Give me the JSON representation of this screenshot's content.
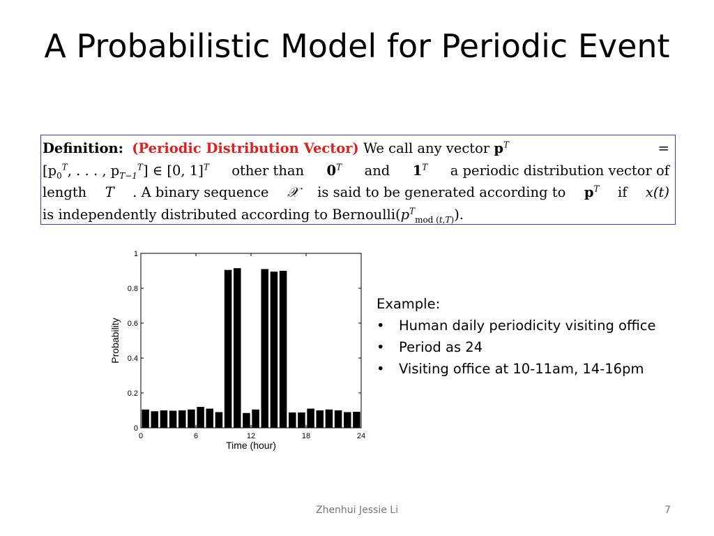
{
  "slide": {
    "title": "A Probabilistic Model for Periodic Event",
    "author": "Zhenhui Jessie Li",
    "page_number": "7"
  },
  "definition": {
    "label": "Definition:",
    "name": "(Periodic Distribution Vector)",
    "line1_text": "We call any vector",
    "line1_tail": "=",
    "line2_a": "[p",
    "line2_b": ", . . . , p",
    "line2_c": "] ∈ [0, 1]",
    "line2_d": "other than",
    "line2_e": "and",
    "line2_f": "a periodic distribution vector of",
    "line3_a": "length",
    "line3_b": ". A binary sequence",
    "line3_c": "is said to be generated according to",
    "line3_d": "if",
    "line4_a": "is independently distributed according to Bernoulli(",
    "line4_b": ")."
  },
  "example": {
    "heading": "Example:",
    "bullet_symbol": "•",
    "items": [
      "Human daily periodicity visiting office",
      "Period as 24",
      "Visiting office at 10-11am, 14-16pm"
    ]
  },
  "chart_data": {
    "type": "bar",
    "title": "",
    "xlabel": "Time (hour)",
    "ylabel": "Probability",
    "xlim": [
      0,
      24
    ],
    "ylim": [
      0,
      1
    ],
    "xticks": [
      0,
      6,
      12,
      18,
      24
    ],
    "yticks": [
      0,
      0.2,
      0.4,
      0.6,
      0.8,
      1
    ],
    "ytick_labels": [
      "0",
      "0.2",
      "0.4",
      "0.6",
      "0.8",
      "1"
    ],
    "grid": false,
    "bar_color": "#000000",
    "categories": [
      1,
      2,
      3,
      4,
      5,
      6,
      7,
      8,
      9,
      10,
      11,
      12,
      13,
      14,
      15,
      16,
      17,
      18,
      19,
      20,
      21,
      22,
      23,
      24
    ],
    "values": [
      0.105,
      0.095,
      0.1,
      0.098,
      0.1,
      0.105,
      0.12,
      0.11,
      0.09,
      0.905,
      0.915,
      0.085,
      0.105,
      0.91,
      0.895,
      0.9,
      0.088,
      0.088,
      0.11,
      0.1,
      0.105,
      0.1,
      0.09,
      0.092
    ]
  }
}
